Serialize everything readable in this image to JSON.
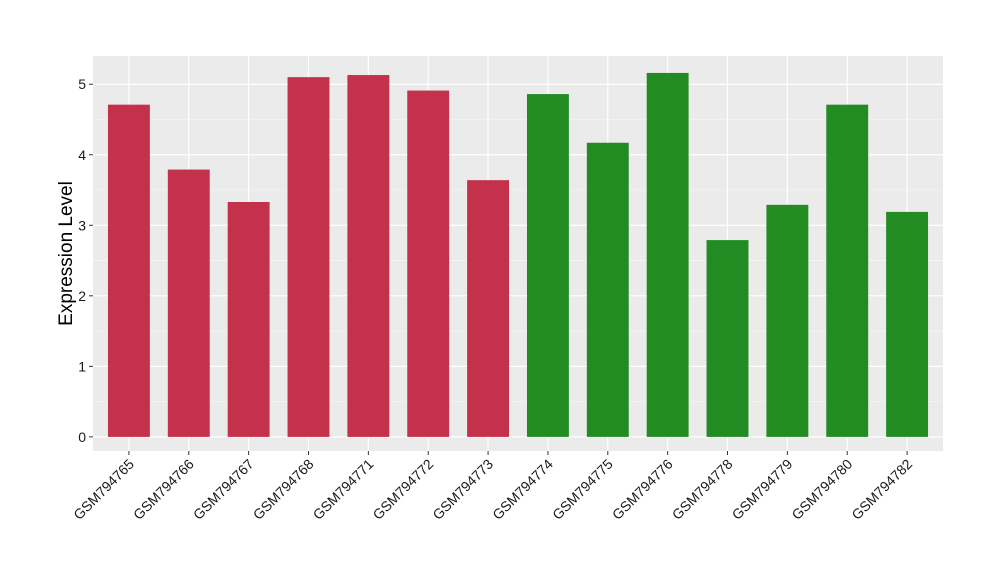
{
  "chart_data": {
    "type": "bar",
    "title": "",
    "xlabel": "",
    "ylabel": "Expression Level",
    "ylim": [
      -0.2,
      5.4
    ],
    "yticks": [
      0,
      1,
      2,
      3,
      4,
      5
    ],
    "grid": true,
    "legend": "none",
    "categories": [
      "GSM794765",
      "GSM794766",
      "GSM794767",
      "GSM794768",
      "GSM794771",
      "GSM794772",
      "GSM794773",
      "GSM794774",
      "GSM794775",
      "GSM794776",
      "GSM794778",
      "GSM794779",
      "GSM794780",
      "GSM794782"
    ],
    "values": [
      4.71,
      3.79,
      3.33,
      5.1,
      5.13,
      4.91,
      3.64,
      4.86,
      4.17,
      5.16,
      2.79,
      3.29,
      4.71,
      3.19
    ],
    "groups": [
      "red",
      "red",
      "red",
      "red",
      "red",
      "red",
      "red",
      "green",
      "green",
      "green",
      "green",
      "green",
      "green",
      "green"
    ],
    "colors": {
      "red": "#C3314A",
      "green": "#228B22",
      "panel_background": "#EBEBEB",
      "grid_major": "#FFFFFF",
      "grid_minor": "#F5F5F5"
    }
  }
}
